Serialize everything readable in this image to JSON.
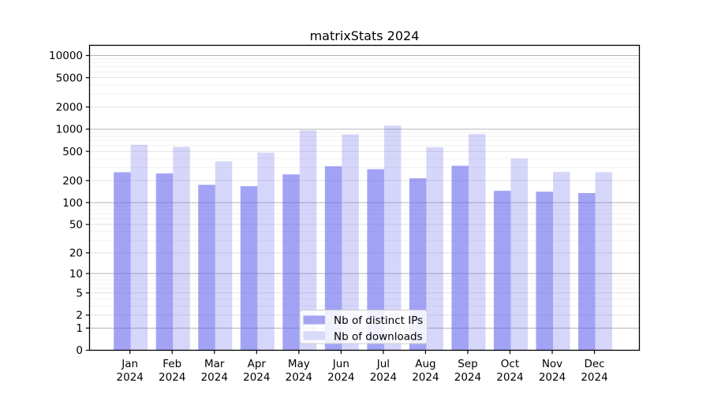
{
  "figure": {
    "background": "#ffffff"
  },
  "colors": {
    "bar_base": "#6666ee",
    "bar_dark_opacity": 0.6,
    "bar_light_opacity": 0.27,
    "bar_dark_hex": "#a4a4f1",
    "bar_light_hex": "#d9d9f9",
    "grid_major": "#b3b3b3",
    "grid_mid": "#e2e2e2",
    "grid_minor": "#f0f0f0",
    "spine": "#000000",
    "legend_border": "#cccccc",
    "legend_fill": "rgba(255,255,255,0.85)"
  },
  "chart_data": {
    "type": "bar",
    "title": "matrixStats 2024",
    "categories": [
      "Jan",
      "Feb",
      "Mar",
      "Apr",
      "May",
      "Jun",
      "Jul",
      "Aug",
      "Sep",
      "Oct",
      "Nov",
      "Dec"
    ],
    "category_year": "2024",
    "series": [
      {
        "name": "Nb of distinct IPs",
        "values": [
          260,
          250,
          175,
          168,
          243,
          313,
          286,
          215,
          318,
          145,
          141,
          135
        ]
      },
      {
        "name": "Nb of downloads",
        "values": [
          615,
          575,
          365,
          480,
          965,
          850,
          1120,
          570,
          860,
          400,
          263,
          260
        ]
      }
    ],
    "yscale": "log1p",
    "yticks": [
      0,
      1,
      2,
      5,
      10,
      20,
      50,
      100,
      200,
      500,
      1000,
      2000,
      5000,
      10000
    ],
    "ylim": [
      0,
      13600
    ],
    "xlabel": "",
    "ylabel": "",
    "grid": true,
    "legend_position": "inside-bottom-center"
  }
}
